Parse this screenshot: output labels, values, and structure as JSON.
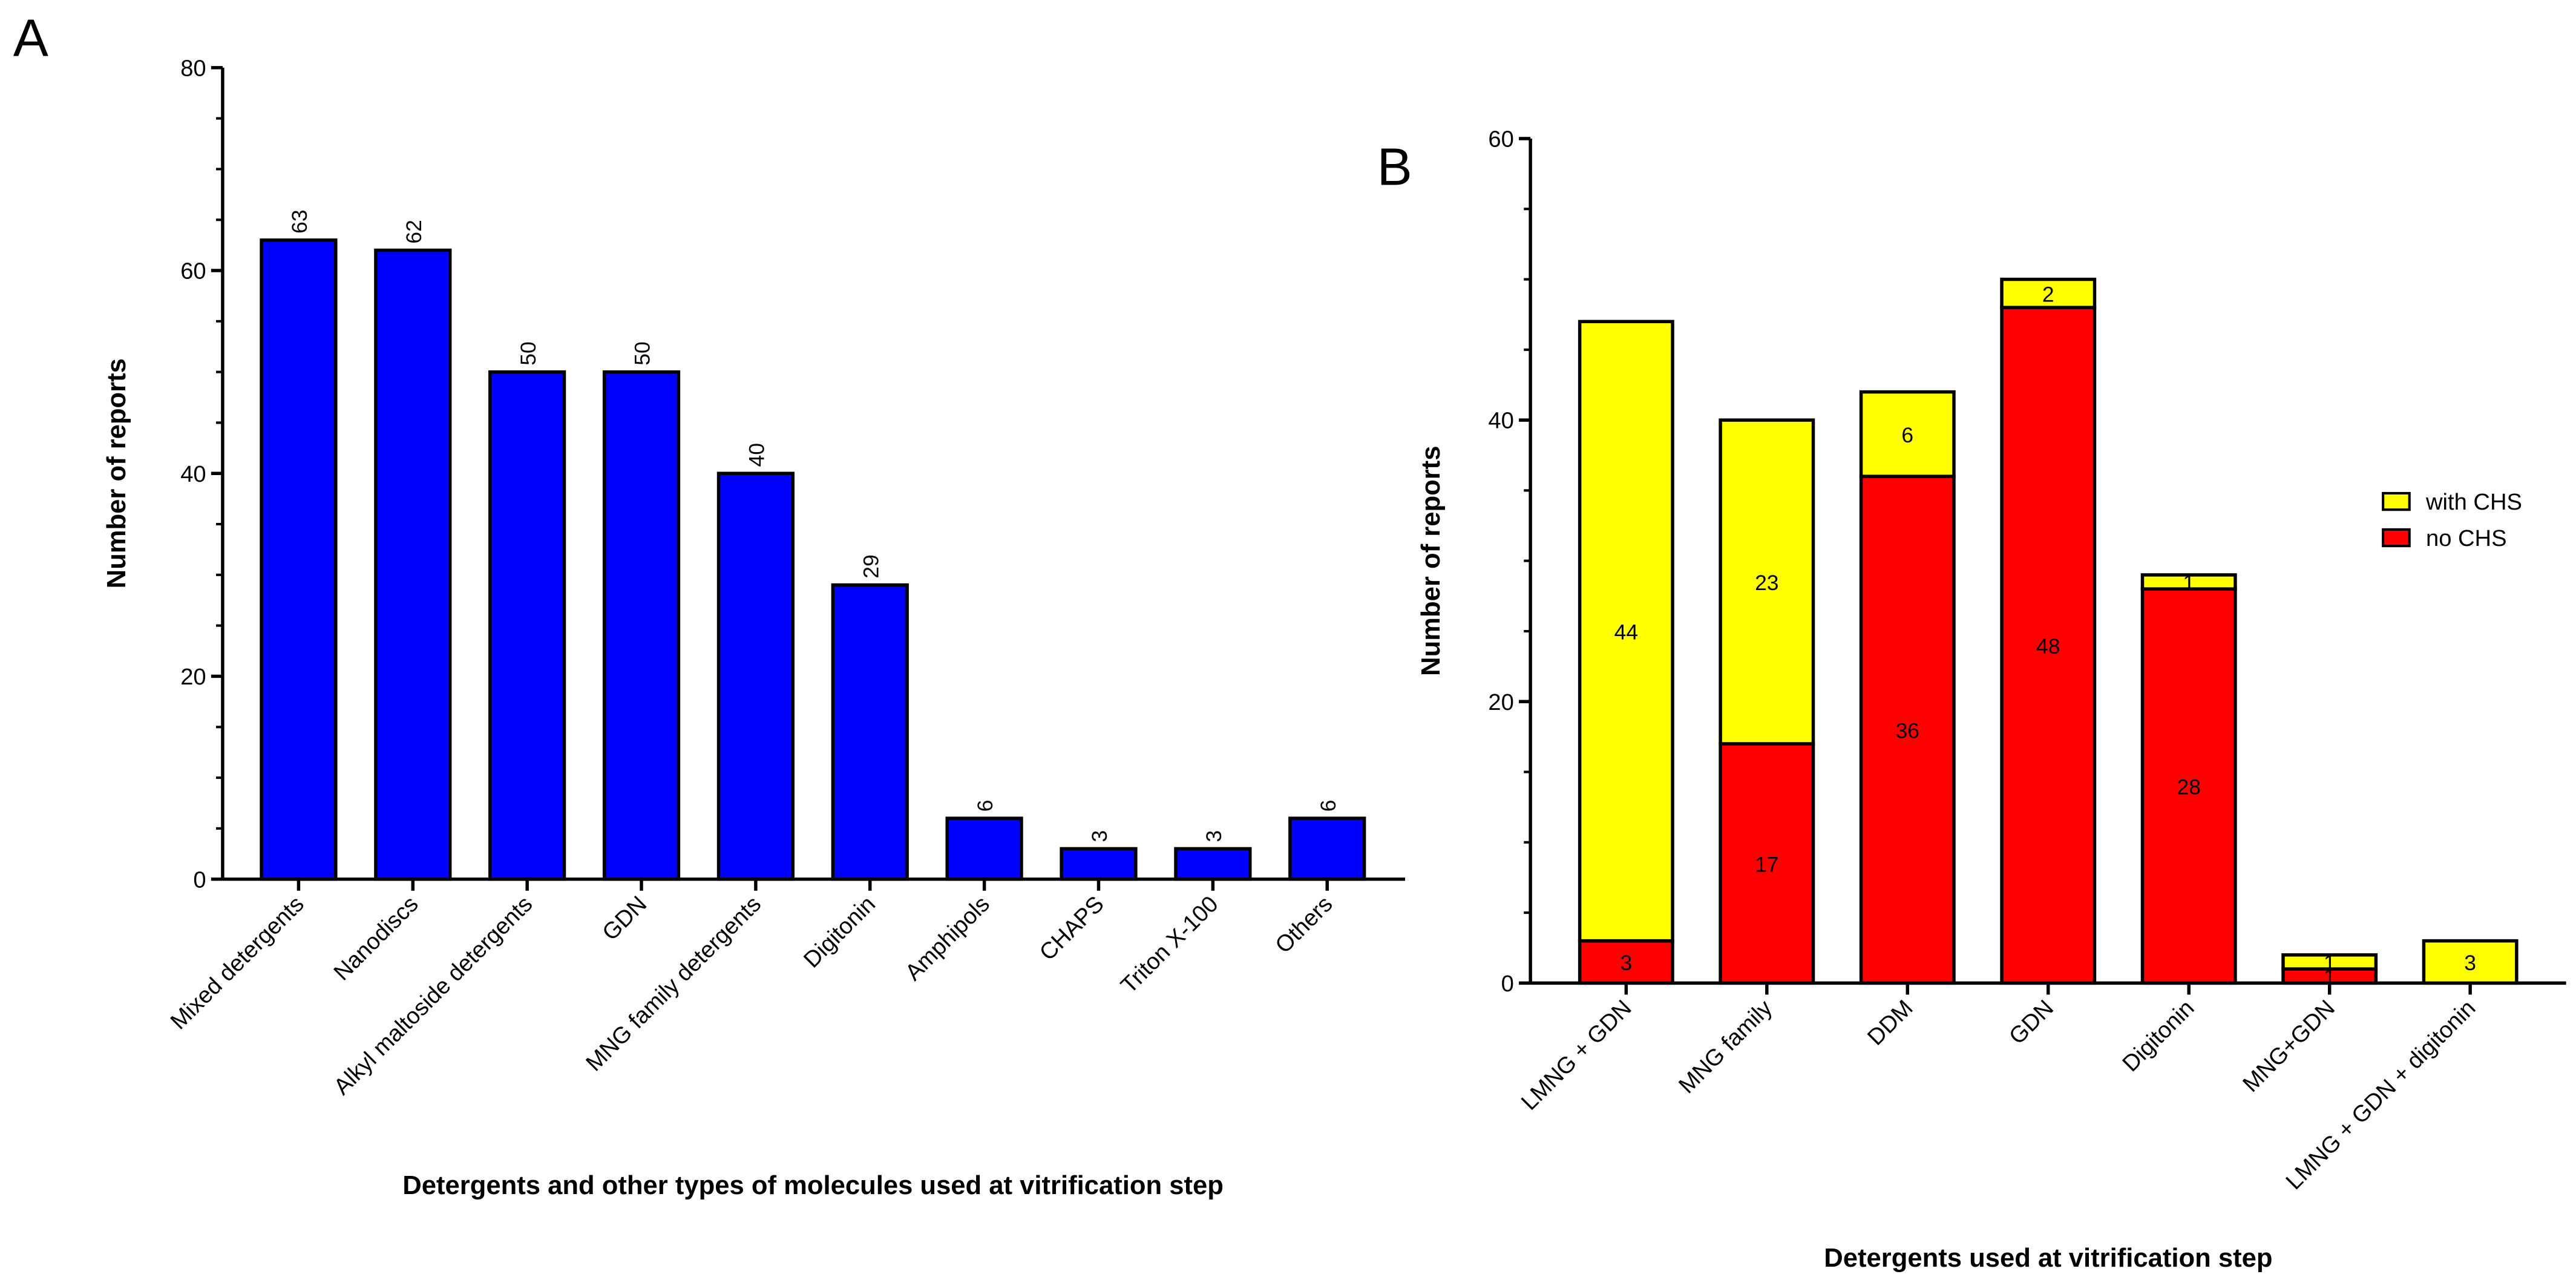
{
  "chart_data": [
    {
      "type": "bar",
      "panel_label": "A",
      "x_label": "Detergents and other types of molecules used at vitrification step",
      "y_label": "Number of reports",
      "categories": [
        "Mixed detergents",
        "Nanodiscs",
        "Alkyl maltoside detergents",
        "GDN",
        "MNG family detergents",
        "Digitonin",
        "Amphipols",
        "CHAPS",
        "Triton X-100",
        "Others"
      ],
      "values": [
        63,
        62,
        50,
        50,
        40,
        29,
        6,
        3,
        3,
        6
      ],
      "color": "#0000ff",
      "ylim": [
        0,
        80
      ],
      "yticks": [
        0,
        20,
        40,
        60,
        80
      ]
    },
    {
      "type": "stacked_bar",
      "panel_label": "B",
      "x_label": "Detergents used at vitrification step",
      "y_label": "Number of reports",
      "categories": [
        "LMNG + GDN",
        "MNG family",
        "DDM",
        "GDN",
        "Digitonin",
        "MNG+GDN",
        "LMNG + GDN + digitonin"
      ],
      "series": [
        {
          "name": "with CHS",
          "color": "#ffff00",
          "values": [
            44,
            23,
            6,
            2,
            1,
            1,
            3
          ]
        },
        {
          "name": "no CHS",
          "color": "#ff0000",
          "values": [
            3,
            17,
            36,
            48,
            28,
            1,
            null
          ]
        }
      ],
      "ylim": [
        0,
        60
      ],
      "yticks": [
        0,
        20,
        40,
        60
      ],
      "legend": "right"
    }
  ]
}
